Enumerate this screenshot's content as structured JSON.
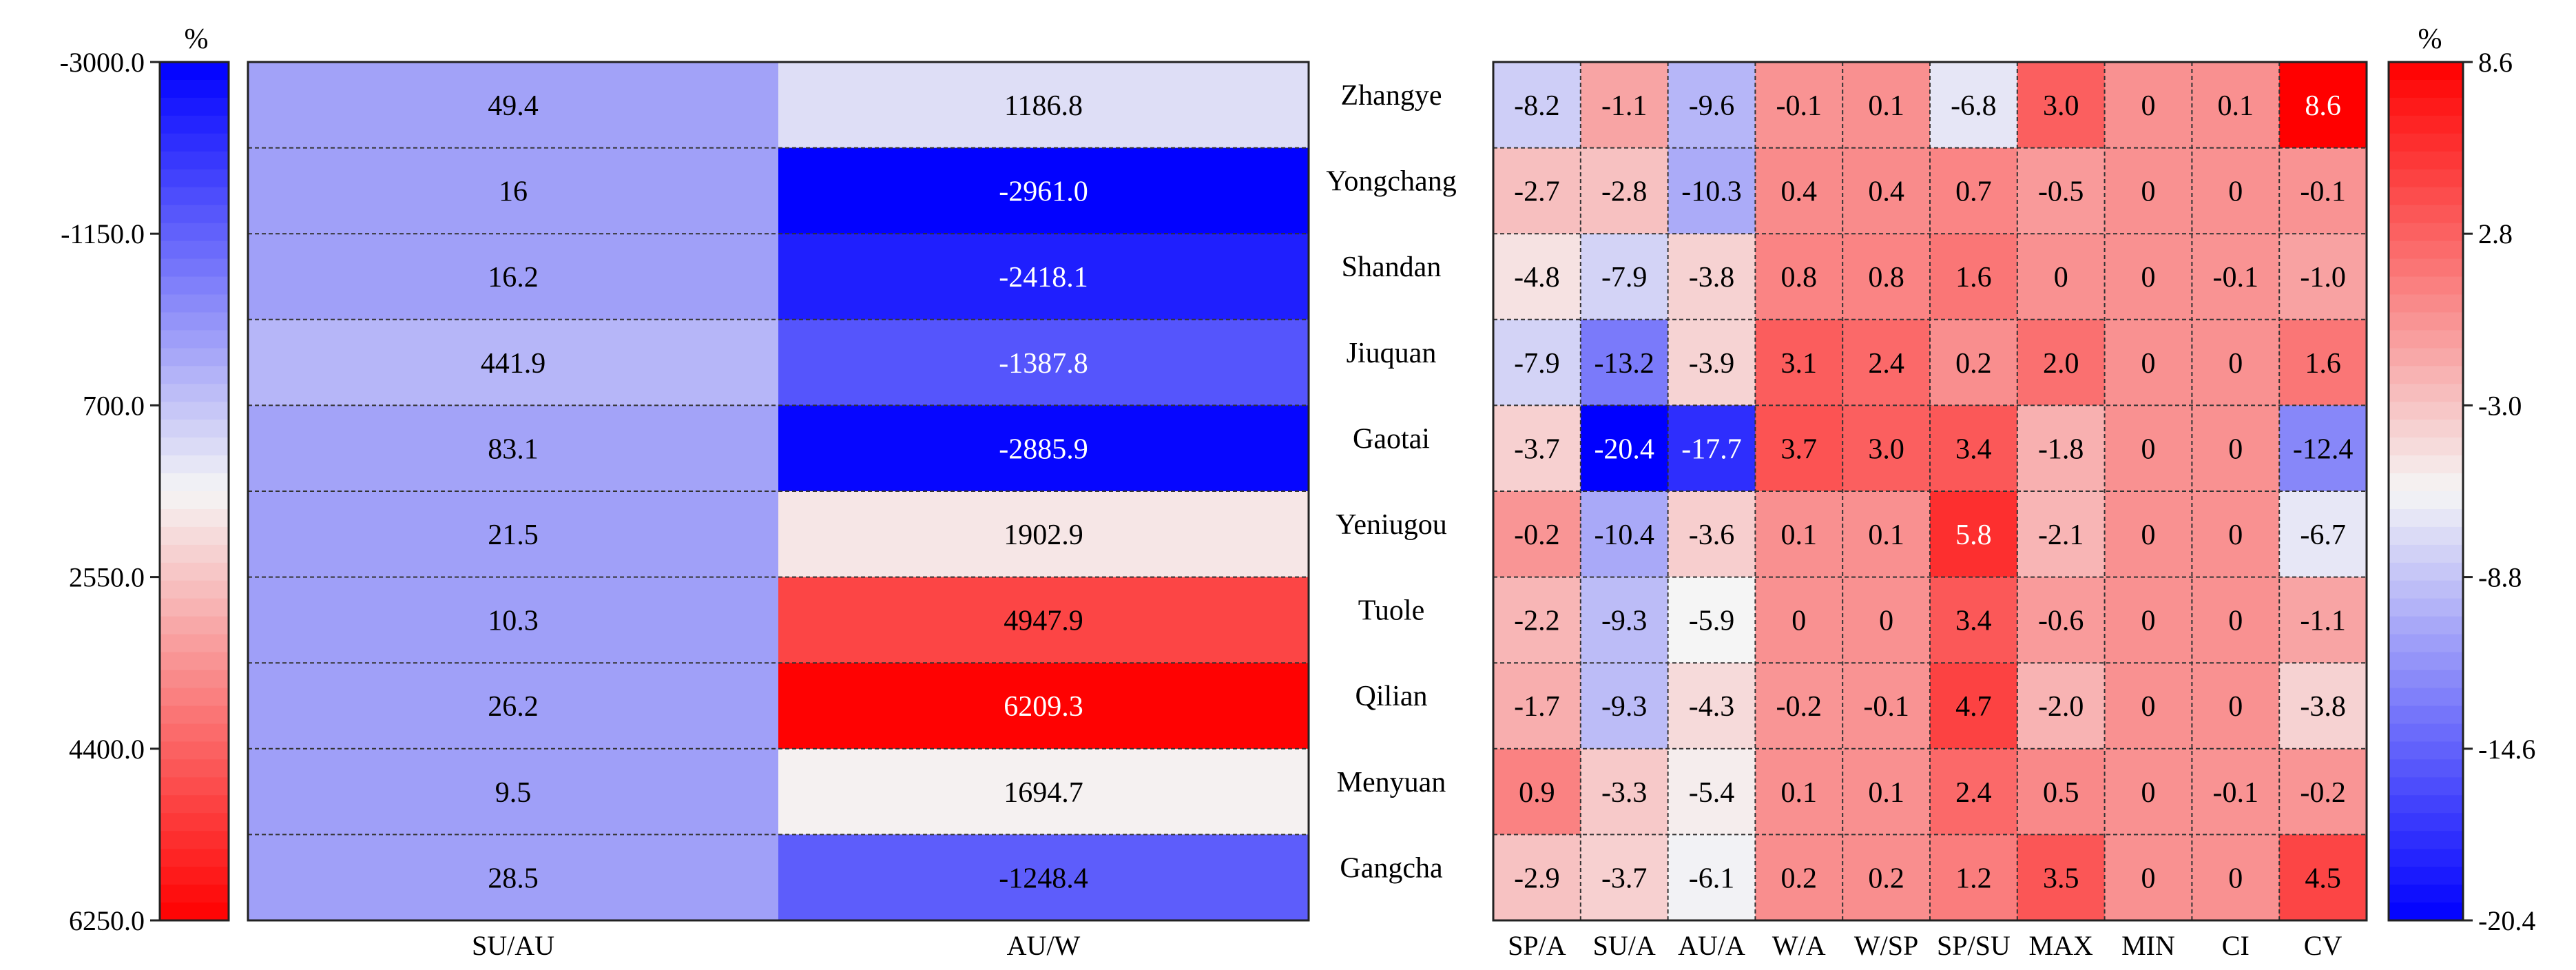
{
  "chart_data": [
    {
      "type": "heatmap",
      "unit_label": "%",
      "columns": [
        "SU/AU",
        "AU/W"
      ],
      "rows": [
        "Zhangye",
        "Yongchang",
        "Shandan",
        "Jiuquan",
        "Gaotai",
        "Yeniugou",
        "Tuole",
        "Qilian",
        "Menyuan",
        "Gangcha"
      ],
      "values": [
        [
          "49.4",
          "1186.8"
        ],
        [
          "16",
          "-2961.0"
        ],
        [
          "16.2",
          "-2418.1"
        ],
        [
          "441.9",
          "-1387.8"
        ],
        [
          "83.1",
          "-2885.9"
        ],
        [
          "21.5",
          "1902.9"
        ],
        [
          "10.3",
          "4947.9"
        ],
        [
          "26.2",
          "6209.3"
        ],
        [
          "9.5",
          "1694.7"
        ],
        [
          "28.5",
          "-1248.4"
        ]
      ],
      "colorbar": {
        "position": "left",
        "min": -3000.0,
        "max": 6250.0,
        "min_color": "#0000ff",
        "max_color": "#ff0000",
        "ticks": [
          "-3000.0",
          "-1150.0",
          "700.0",
          "2550.0",
          "4400.0",
          "6250.0"
        ]
      }
    },
    {
      "type": "heatmap",
      "unit_label": "%",
      "columns": [
        "SP/A",
        "SU/A",
        "AU/A",
        "W/A",
        "W/SP",
        "SP/SU",
        "MAX",
        "MIN",
        "CI",
        "CV"
      ],
      "rows": [
        "Zhangye",
        "Yongchang",
        "Shandan",
        "Jiuquan",
        "Gaotai",
        "Yeniugou",
        "Tuole",
        "Qilian",
        "Menyuan",
        "Gangcha"
      ],
      "values": [
        [
          "-8.2",
          "-1.1",
          "-9.6",
          "-0.1",
          "0.1",
          "-6.8",
          "3.0",
          "0",
          "0.1",
          "8.6"
        ],
        [
          "-2.7",
          "-2.8",
          "-10.3",
          "0.4",
          "0.4",
          "0.7",
          "-0.5",
          "0",
          "0",
          "-0.1"
        ],
        [
          "-4.8",
          "-7.9",
          "-3.8",
          "0.8",
          "0.8",
          "1.6",
          "0",
          "0",
          "-0.1",
          "-1.0"
        ],
        [
          "-7.9",
          "-13.2",
          "-3.9",
          "3.1",
          "2.4",
          "0.2",
          "2.0",
          "0",
          "0",
          "1.6"
        ],
        [
          "-3.7",
          "-20.4",
          "-17.7",
          "3.7",
          "3.0",
          "3.4",
          "-1.8",
          "0",
          "0",
          "-12.4"
        ],
        [
          "-0.2",
          "-10.4",
          "-3.6",
          "0.1",
          "0.1",
          "5.8",
          "-2.1",
          "0",
          "0",
          "-6.7"
        ],
        [
          "-2.2",
          "-9.3",
          "-5.9",
          "0",
          "0",
          "3.4",
          "-0.6",
          "0",
          "0",
          "-1.1"
        ],
        [
          "-1.7",
          "-9.3",
          "-4.3",
          "-0.2",
          "-0.1",
          "4.7",
          "-2.0",
          "0",
          "0",
          "-3.8"
        ],
        [
          "0.9",
          "-3.3",
          "-5.4",
          "0.1",
          "0.1",
          "2.4",
          "0.5",
          "0",
          "-0.1",
          "-0.2"
        ],
        [
          "-2.9",
          "-3.7",
          "-6.1",
          "0.2",
          "0.2",
          "1.2",
          "3.5",
          "0",
          "0",
          "4.5"
        ]
      ],
      "colorbar": {
        "position": "right",
        "min": -20.4,
        "max": 8.6,
        "min_color": "#0000ff",
        "max_color": "#ff0000",
        "ticks": [
          "8.6",
          "2.8",
          "-3.0",
          "-8.8",
          "-14.6",
          "-20.4"
        ]
      }
    }
  ]
}
